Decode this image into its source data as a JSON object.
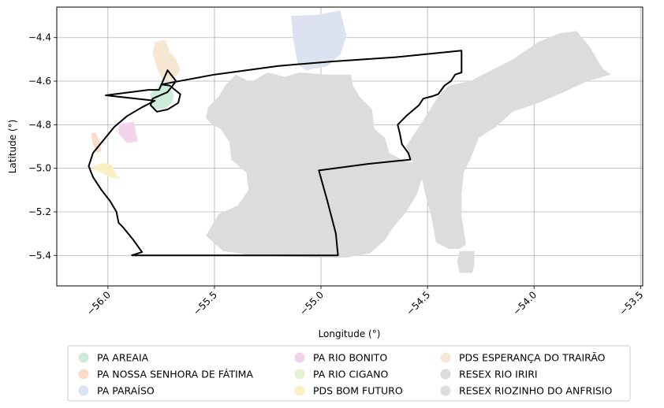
{
  "chart_data": {
    "type": "map",
    "xlabel": "Longitude (°)",
    "ylabel": "Latitude (°)",
    "xlim": [
      -56.24,
      -53.49
    ],
    "ylim": [
      -5.54,
      -4.26
    ],
    "xticks": [
      {
        "value": -56.0,
        "label": "−56.0"
      },
      {
        "value": -55.5,
        "label": "−55.5"
      },
      {
        "value": -55.0,
        "label": "−55.0"
      },
      {
        "value": -54.5,
        "label": "−54.5"
      },
      {
        "value": -54.0,
        "label": "−54.0"
      },
      {
        "value": -53.5,
        "label": "−53.5"
      }
    ],
    "yticks": [
      {
        "value": -4.4,
        "label": "−4.4"
      },
      {
        "value": -4.6,
        "label": "−4.6"
      },
      {
        "value": -4.8,
        "label": "−4.8"
      },
      {
        "value": -5.0,
        "label": "−5.0"
      },
      {
        "value": -5.2,
        "label": "−5.2"
      },
      {
        "value": -5.4,
        "label": "−5.4"
      }
    ],
    "grid": true,
    "legend_position": "below",
    "legend_columns": 3,
    "areas": [
      {
        "name": "PA AREAIA",
        "color": "#cdebd9",
        "coords": [
          [
            -55.8,
            -4.655
          ],
          [
            -55.77,
            -4.63
          ],
          [
            -55.74,
            -4.615
          ],
          [
            -55.71,
            -4.625
          ],
          [
            -55.69,
            -4.665
          ],
          [
            -55.7,
            -4.7
          ],
          [
            -55.73,
            -4.725
          ],
          [
            -55.77,
            -4.73
          ],
          [
            -55.8,
            -4.71
          ]
        ]
      },
      {
        "name": "PA NOSSA SENHORA DE FÁTIMA",
        "color": "#fbdcc8",
        "coords": [
          [
            -56.08,
            -4.84
          ],
          [
            -56.06,
            -4.835
          ],
          [
            -56.04,
            -4.87
          ],
          [
            -56.03,
            -4.92
          ],
          [
            -56.05,
            -4.93
          ],
          [
            -56.07,
            -4.89
          ]
        ]
      },
      {
        "name": "PA PARAÍSO",
        "color": "#dde2f0",
        "coords": [
          [
            -55.14,
            -4.3
          ],
          [
            -55.01,
            -4.295
          ],
          [
            -54.91,
            -4.275
          ],
          [
            -54.88,
            -4.39
          ],
          [
            -54.91,
            -4.48
          ],
          [
            -54.97,
            -4.53
          ],
          [
            -55.07,
            -4.55
          ],
          [
            -55.11,
            -4.52
          ],
          [
            -55.13,
            -4.41
          ]
        ]
      },
      {
        "name": "PA RIO BONITO",
        "color": "#f3d3ea",
        "coords": [
          [
            -55.95,
            -4.8
          ],
          [
            -55.88,
            -4.785
          ],
          [
            -55.86,
            -4.875
          ],
          [
            -55.91,
            -4.885
          ],
          [
            -55.95,
            -4.84
          ]
        ]
      },
      {
        "name": "PA RIO CIGANO",
        "color": "#e4f2d2",
        "coords": []
      },
      {
        "name": "PDS BOM FUTURO",
        "color": "#fbf0c4",
        "coords": [
          [
            -56.07,
            -4.99
          ],
          [
            -56.02,
            -4.975
          ],
          [
            -55.98,
            -4.985
          ],
          [
            -55.96,
            -5.03
          ],
          [
            -55.94,
            -5.045
          ],
          [
            -55.98,
            -5.045
          ],
          [
            -56.02,
            -5.025
          ],
          [
            -56.06,
            -5.01
          ]
        ]
      },
      {
        "name": "PDS ESPERANÇA DO TRAIRÃO",
        "color": "#f5e7d2",
        "coords": [
          [
            -55.78,
            -4.42
          ],
          [
            -55.73,
            -4.41
          ],
          [
            -55.71,
            -4.465
          ],
          [
            -55.68,
            -4.5
          ],
          [
            -55.66,
            -4.55
          ],
          [
            -55.69,
            -4.59
          ],
          [
            -55.74,
            -4.6
          ],
          [
            -55.77,
            -4.54
          ],
          [
            -55.79,
            -4.47
          ]
        ]
      },
      {
        "name": "RESEX RIO IRIRI",
        "color": "#dcdcdc",
        "coords": [
          [
            -55.53,
            -4.72
          ],
          [
            -55.48,
            -4.67
          ],
          [
            -55.45,
            -4.62
          ],
          [
            -55.4,
            -4.57
          ],
          [
            -55.33,
            -4.605
          ],
          [
            -55.25,
            -4.56
          ],
          [
            -55.17,
            -4.58
          ],
          [
            -55.1,
            -4.56
          ],
          [
            -54.98,
            -4.57
          ],
          [
            -54.86,
            -4.57
          ],
          [
            -54.85,
            -4.62
          ],
          [
            -54.82,
            -4.67
          ],
          [
            -54.76,
            -4.73
          ],
          [
            -54.75,
            -4.82
          ],
          [
            -54.7,
            -4.86
          ],
          [
            -54.68,
            -4.93
          ],
          [
            -54.62,
            -4.96
          ],
          [
            -54.55,
            -4.98
          ],
          [
            -54.52,
            -5.03
          ],
          [
            -54.55,
            -5.12
          ],
          [
            -54.6,
            -5.2
          ],
          [
            -54.66,
            -5.27
          ],
          [
            -54.7,
            -5.33
          ],
          [
            -54.77,
            -5.39
          ],
          [
            -54.88,
            -5.41
          ],
          [
            -55.02,
            -5.41
          ],
          [
            -55.18,
            -5.405
          ],
          [
            -55.32,
            -5.4
          ],
          [
            -55.46,
            -5.38
          ],
          [
            -55.54,
            -5.31
          ],
          [
            -55.48,
            -5.21
          ],
          [
            -55.39,
            -5.17
          ],
          [
            -55.34,
            -5.1
          ],
          [
            -55.35,
            -5.02
          ],
          [
            -55.42,
            -4.96
          ],
          [
            -55.43,
            -4.88
          ],
          [
            -55.47,
            -4.82
          ],
          [
            -55.51,
            -4.8
          ],
          [
            -55.54,
            -4.77
          ]
        ]
      },
      {
        "name": "RESEX RIOZINHO DO ANFRISIO",
        "color": "#dcdcdc",
        "coords": [
          [
            -54.6,
            -4.9
          ],
          [
            -54.52,
            -4.78
          ],
          [
            -54.45,
            -4.67
          ],
          [
            -54.4,
            -4.62
          ],
          [
            -54.3,
            -4.6
          ],
          [
            -54.2,
            -4.55
          ],
          [
            -54.1,
            -4.5
          ],
          [
            -53.98,
            -4.42
          ],
          [
            -53.88,
            -4.38
          ],
          [
            -53.8,
            -4.37
          ],
          [
            -53.74,
            -4.44
          ],
          [
            -53.68,
            -4.54
          ],
          [
            -53.64,
            -4.57
          ],
          [
            -53.75,
            -4.6
          ],
          [
            -53.86,
            -4.65
          ],
          [
            -53.98,
            -4.7
          ],
          [
            -54.1,
            -4.74
          ],
          [
            -54.18,
            -4.81
          ],
          [
            -54.26,
            -4.86
          ],
          [
            -54.3,
            -4.96
          ],
          [
            -54.33,
            -5.02
          ],
          [
            -54.34,
            -5.12
          ],
          [
            -54.34,
            -5.22
          ],
          [
            -54.33,
            -5.28
          ],
          [
            -54.32,
            -5.35
          ],
          [
            -54.35,
            -5.37
          ],
          [
            -54.4,
            -5.37
          ],
          [
            -54.46,
            -5.34
          ],
          [
            -54.48,
            -5.23
          ],
          [
            -54.51,
            -5.12
          ],
          [
            -54.53,
            -5.03
          ],
          [
            -54.57,
            -4.97
          ]
        ]
      },
      {
        "name": "RESEX RIOZINHO DO ANFRISIO",
        "color": "#dcdcdc",
        "legend": false,
        "coords": [
          [
            -54.35,
            -5.38
          ],
          [
            -54.28,
            -5.38
          ],
          [
            -54.28,
            -5.44
          ],
          [
            -54.29,
            -5.48
          ],
          [
            -54.35,
            -5.48
          ],
          [
            -54.36,
            -5.43
          ]
        ]
      }
    ],
    "boundary": {
      "color": "#000000",
      "coords": [
        [
          -55.89,
          -5.4
        ],
        [
          -55.84,
          -5.385
        ],
        [
          -55.88,
          -5.33
        ],
        [
          -55.93,
          -5.27
        ],
        [
          -55.95,
          -5.25
        ],
        [
          -55.96,
          -5.2
        ],
        [
          -55.99,
          -5.15
        ],
        [
          -56.03,
          -5.1
        ],
        [
          -56.07,
          -5.04
        ],
        [
          -56.09,
          -4.99
        ],
        [
          -56.07,
          -4.93
        ],
        [
          -56.02,
          -4.87
        ],
        [
          -55.97,
          -4.81
        ],
        [
          -55.91,
          -4.76
        ],
        [
          -55.84,
          -4.72
        ],
        [
          -55.78,
          -4.69
        ],
        [
          -56.01,
          -4.665
        ],
        [
          -55.81,
          -4.64
        ],
        [
          -55.76,
          -4.64
        ],
        [
          -55.72,
          -4.55
        ],
        [
          -55.68,
          -4.6
        ],
        [
          -55.72,
          -4.65
        ],
        [
          -55.79,
          -4.68
        ],
        [
          -55.8,
          -4.71
        ],
        [
          -55.77,
          -4.74
        ],
        [
          -55.72,
          -4.73
        ],
        [
          -55.67,
          -4.7
        ],
        [
          -55.66,
          -4.66
        ],
        [
          -55.71,
          -4.62
        ],
        [
          -55.75,
          -4.615
        ],
        [
          -55.5,
          -4.57
        ],
        [
          -55.2,
          -4.53
        ],
        [
          -54.95,
          -4.51
        ],
        [
          -54.65,
          -4.49
        ],
        [
          -54.34,
          -4.46
        ],
        [
          -54.34,
          -4.56
        ],
        [
          -54.37,
          -4.57
        ],
        [
          -54.39,
          -4.6
        ],
        [
          -54.42,
          -4.62
        ],
        [
          -54.45,
          -4.66
        ],
        [
          -54.48,
          -4.67
        ],
        [
          -54.52,
          -4.68
        ],
        [
          -54.54,
          -4.71
        ],
        [
          -54.6,
          -4.76
        ],
        [
          -54.64,
          -4.8
        ],
        [
          -54.63,
          -4.84
        ],
        [
          -54.62,
          -4.89
        ],
        [
          -54.59,
          -4.93
        ],
        [
          -54.58,
          -4.96
        ],
        [
          -54.78,
          -4.98
        ],
        [
          -55.01,
          -5.01
        ],
        [
          -54.97,
          -5.15
        ],
        [
          -54.93,
          -5.3
        ],
        [
          -54.92,
          -5.4
        ],
        [
          -55.4,
          -5.4
        ],
        [
          -55.89,
          -5.4
        ]
      ]
    },
    "legend": [
      {
        "label": "PA AREAIA",
        "color": "#cdebd9"
      },
      {
        "label": "PA NOSSA SENHORA DE FÁTIMA",
        "color": "#fbdcc8"
      },
      {
        "label": "PA PARAÍSO",
        "color": "#dde2f0"
      },
      {
        "label": "PA RIO BONITO",
        "color": "#f3d3ea"
      },
      {
        "label": "PA RIO CIGANO",
        "color": "#e4f2d2"
      },
      {
        "label": "PDS BOM FUTURO",
        "color": "#fbf0c4"
      },
      {
        "label": "PDS ESPERANÇA DO TRAIRÃO",
        "color": "#f5e7d2"
      },
      {
        "label": "RESEX RIO IRIRI",
        "color": "#dcdcdc"
      },
      {
        "label": "RESEX RIOZINHO DO ANFRISIO",
        "color": "#dcdcdc"
      }
    ]
  }
}
